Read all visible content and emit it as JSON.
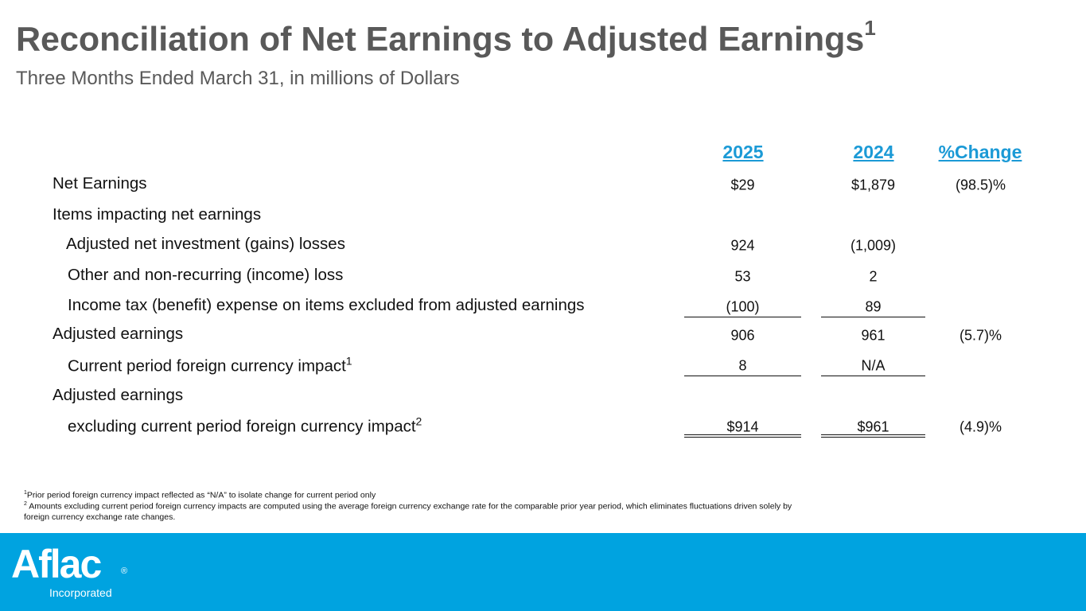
{
  "header": {
    "title": "Reconciliation of Net Earnings to Adjusted Earnings",
    "title_sup": "1",
    "subtitle": "Three Months Ended March 31, in millions of Dollars"
  },
  "table": {
    "columns": [
      "2025",
      "2024",
      "%Change"
    ],
    "rows": [
      {
        "label": "Net Earnings",
        "c2025": "$29",
        "c2024": "$1,879",
        "change": "(98.5)%"
      },
      {
        "label": "Items impacting net earnings"
      },
      {
        "label": "Adjusted net investment (gains) losses",
        "c2025": "924",
        "c2024": "(1,009)"
      },
      {
        "label": "Other and non-recurring (income) loss",
        "c2025": "53",
        "c2024": "2"
      },
      {
        "label": "Income tax (benefit) expense on items excluded from adjusted earnings",
        "c2025": "(100)",
        "c2024": "89"
      },
      {
        "label": "Adjusted earnings",
        "c2025": "906",
        "c2024": "961",
        "change": "(5.7)%"
      },
      {
        "label": "Current period foreign currency impact",
        "sup": "1",
        "c2025": "8",
        "c2024": "N/A"
      },
      {
        "label": "Adjusted earnings"
      },
      {
        "label": "excluding current period foreign currency impact",
        "sup": "2",
        "c2025": "$914",
        "c2024": "$961",
        "change": "(4.9)%"
      }
    ]
  },
  "footnotes": [
    {
      "mark": "1",
      "text": "Prior period foreign currency impact reflected as “N/A” to isolate change for current period only"
    },
    {
      "mark": "2",
      "text": " Amounts excluding current period foreign currency impacts are computed using the average foreign currency exchange rate for the comparable prior year period, which eliminates fluctuations driven solely by foreign currency exchange rate changes."
    }
  ],
  "footer": {
    "logo": "Aflac",
    "registered": "®",
    "tagline": "Incorporated"
  }
}
